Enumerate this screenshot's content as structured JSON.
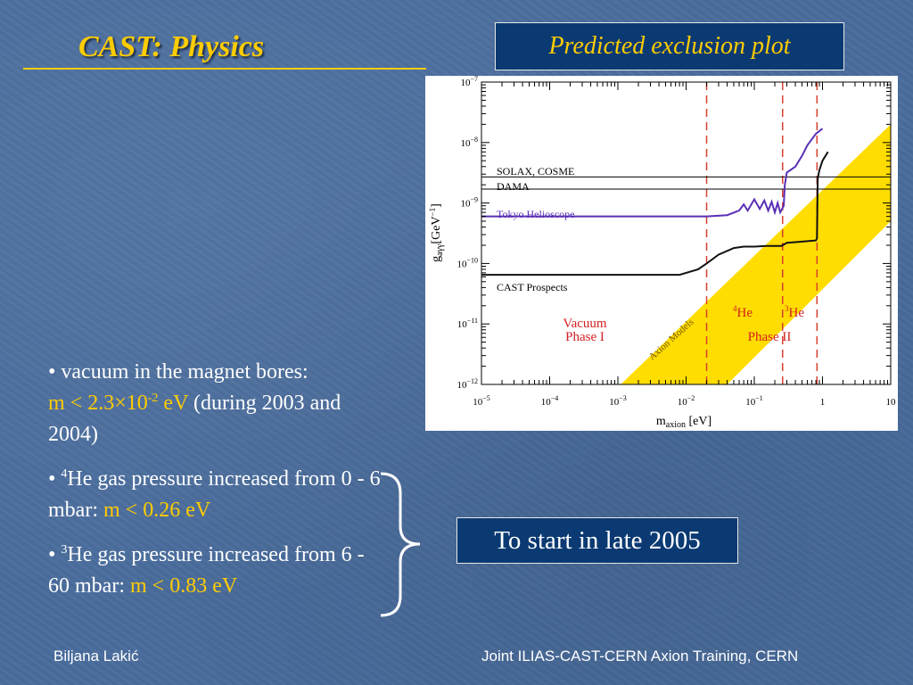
{
  "slide": {
    "title": "CAST: Physics",
    "plot_box_label": "Predicted exclusion plot",
    "bullets": [
      {
        "lead": "• vacuum in the magnet bores:",
        "highlight": "m < 2.3×10",
        "highlight_sup": "-2",
        "highlight_tail": " eV",
        "rest": "  (during 2003 and 2004)"
      },
      {
        "lead": "• ",
        "sup": "4",
        "text": "He gas pressure increased from 0 - 6 mbar: ",
        "highlight": "m < 0.26 eV"
      },
      {
        "lead": "• ",
        "sup": "3",
        "text": "He gas pressure increased from 6 - 60 mbar: ",
        "highlight": "m < 0.83 eV"
      }
    ],
    "start_box_label": "To start in late 2005",
    "footer_left": "Biljana Lakić",
    "footer_right": "Joint ILIAS-CAST-CERN Axion Training, CERN"
  },
  "chart_data": {
    "type": "line",
    "xlabel": "m",
    "xlabel_sub": "axion",
    "xlabel_unit": " [eV]",
    "ylabel": "g",
    "ylabel_sub": "aγγ",
    "ylabel_unit": "[GeV",
    "ylabel_unit_sup": "−1",
    "ylabel_unit_tail": "]",
    "xscale": "log",
    "yscale": "log",
    "xlim": [
      1e-05,
      10
    ],
    "ylim": [
      1e-12,
      1e-07
    ],
    "x_ticks": [
      {
        "v": 1e-05,
        "base": "10",
        "exp": "−5"
      },
      {
        "v": 0.0001,
        "base": "10",
        "exp": "−4"
      },
      {
        "v": 0.001,
        "base": "10",
        "exp": "−3"
      },
      {
        "v": 0.01,
        "base": "10",
        "exp": "−2"
      },
      {
        "v": 0.1,
        "base": "10",
        "exp": "−1"
      },
      {
        "v": 1,
        "base": "1",
        "exp": ""
      },
      {
        "v": 10,
        "base": "10",
        "exp": ""
      }
    ],
    "y_ticks": [
      {
        "v": 1e-07,
        "base": "10",
        "exp": "−7"
      },
      {
        "v": 1e-08,
        "base": "10",
        "exp": "−8"
      },
      {
        "v": 1e-09,
        "base": "10",
        "exp": "−9"
      },
      {
        "v": 1e-10,
        "base": "10",
        "exp": "−10"
      },
      {
        "v": 1e-11,
        "base": "10",
        "exp": "−11"
      },
      {
        "v": 1e-12,
        "base": "10",
        "exp": "−12"
      }
    ],
    "horizontal_limits": [
      {
        "name": "SOLAX, COSME",
        "y": 2.7e-09
      },
      {
        "name": "DAMA",
        "y": 1.7e-09
      }
    ],
    "series": [
      {
        "name": "Tokyo Helioscope",
        "color": "#5a2fb5",
        "points": [
          [
            1e-05,
            6e-10
          ],
          [
            0.02,
            6e-10
          ],
          [
            0.04,
            6.3e-10
          ],
          [
            0.06,
            7.5e-10
          ],
          [
            0.07,
            9.5e-10
          ],
          [
            0.08,
            7.5e-10
          ],
          [
            0.1,
            1.15e-09
          ],
          [
            0.12,
            8e-10
          ],
          [
            0.14,
            1.1e-09
          ],
          [
            0.16,
            7.5e-10
          ],
          [
            0.18,
            1.05e-09
          ],
          [
            0.2,
            7e-10
          ],
          [
            0.22,
            1e-09
          ],
          [
            0.24,
            7e-10
          ],
          [
            0.27,
            9e-10
          ],
          [
            0.28,
            2e-09
          ],
          [
            0.3,
            3.2e-09
          ],
          [
            0.4,
            4e-09
          ],
          [
            0.5,
            6e-09
          ],
          [
            0.6,
            9e-09
          ],
          [
            0.8,
            1.4e-08
          ],
          [
            1.0,
            1.7e-08
          ]
        ]
      },
      {
        "name": "CAST Prospects",
        "color": "#111111",
        "points": [
          [
            1e-05,
            6.5e-11
          ],
          [
            0.008,
            6.5e-11
          ],
          [
            0.015,
            8e-11
          ],
          [
            0.02,
            1e-10
          ],
          [
            0.03,
            1.4e-10
          ],
          [
            0.05,
            1.8e-10
          ],
          [
            0.07,
            1.9e-10
          ],
          [
            0.1,
            1.9e-10
          ],
          [
            0.15,
            1.95e-10
          ],
          [
            0.25,
            1.95e-10
          ],
          [
            0.3,
            2.2e-10
          ],
          [
            0.5,
            2.3e-10
          ],
          [
            0.8,
            2.4e-10
          ],
          [
            0.83,
            2.6e-10
          ],
          [
            0.85,
            2.5e-09
          ],
          [
            0.9,
            3.5e-09
          ],
          [
            1.0,
            5e-09
          ],
          [
            1.2,
            7e-09
          ]
        ]
      }
    ],
    "band": {
      "name": "Axion Models",
      "color": "#ffdd00"
    },
    "vertical_lines": [
      {
        "x": 0.02,
        "color": "#d94030"
      },
      {
        "x": 0.26,
        "color": "#d94030"
      },
      {
        "x": 0.83,
        "color": "#d94030"
      }
    ],
    "annotations": [
      {
        "id": "vacuum",
        "lines": [
          "Vacuum",
          "Phase I"
        ],
        "color": "#d42020"
      },
      {
        "id": "he4",
        "sup": "4",
        "text": "He",
        "color": "#d42020"
      },
      {
        "id": "he3",
        "sup": "3",
        "text": "He",
        "color": "#d42020"
      },
      {
        "id": "phase2",
        "lines": [
          "Phase II"
        ],
        "color": "#d42020"
      }
    ]
  }
}
